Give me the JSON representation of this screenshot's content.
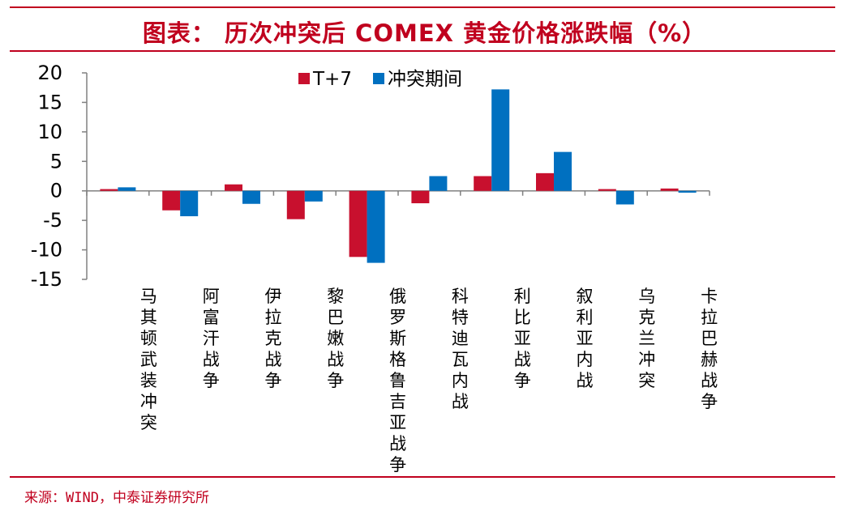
{
  "title": "图表： 历次冲突后 COMEX 黄金价格涨跌幅（%）",
  "source": "来源：WIND，中泰证券研究所",
  "colors": {
    "accent": "#c0001e",
    "series_t7": "#c8102e",
    "series_period": "#0070c0"
  },
  "chart_data": {
    "type": "bar",
    "title": "图表： 历次冲突后 COMEX 黄金价格涨跌幅（%）",
    "xlabel": "",
    "ylabel": "",
    "ylim": [
      -15,
      20
    ],
    "yticks": [
      20,
      15,
      10,
      5,
      0,
      -5,
      -10,
      -15
    ],
    "grid": false,
    "legend": "top",
    "categories": [
      "马其顿武装冲突",
      "阿富汗战争",
      "伊拉克战争",
      "黎巴嫩战争",
      "俄罗斯格鲁吉亚战争",
      "科特迪瓦内战",
      "利比亚战争",
      "叙利亚内战",
      "乌克兰冲突",
      "卡拉巴赫战争"
    ],
    "series": [
      {
        "name": "T+7",
        "color": "#c8102e",
        "values": [
          0.3,
          -3.3,
          1.1,
          -4.8,
          -11.2,
          -2.1,
          2.5,
          3.0,
          0.3,
          0.4
        ]
      },
      {
        "name": "冲突期间",
        "color": "#0070c0",
        "values": [
          0.6,
          -4.3,
          -2.2,
          -1.8,
          -12.2,
          2.5,
          17.2,
          6.6,
          -2.3,
          -0.3
        ]
      }
    ]
  }
}
